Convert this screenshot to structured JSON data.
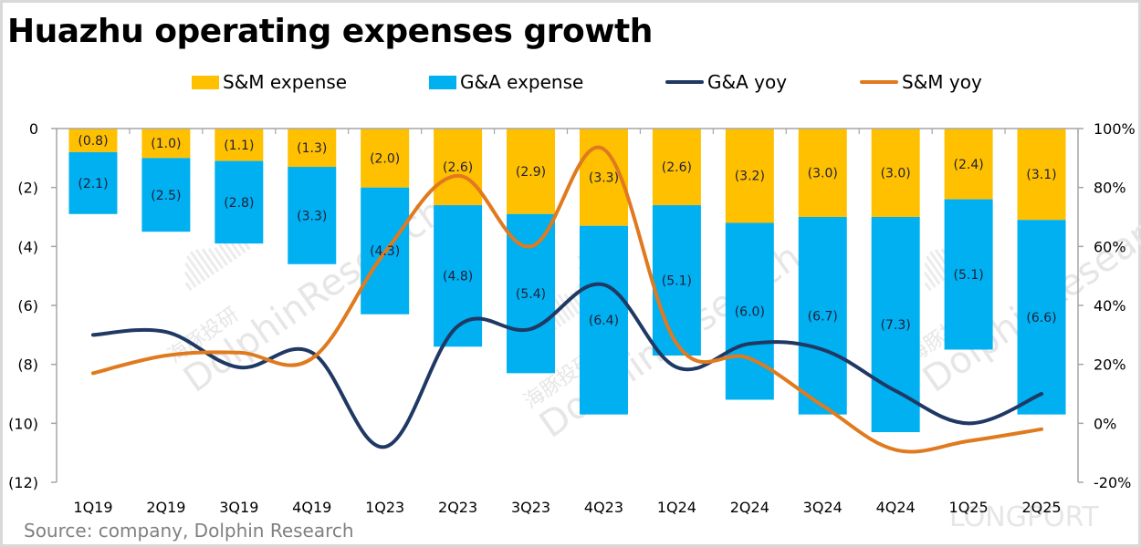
{
  "title": "Huazhu operating expenses growth",
  "source": "Source: company, Dolphin Research",
  "watermark": {
    "brand": "DolphinResearch",
    "brand_cn": "海豚投研",
    "corner": "LONGPORT"
  },
  "legend": [
    {
      "key": "sm_expense",
      "label": "S&M expense",
      "kind": "bar",
      "color": "#FFC000"
    },
    {
      "key": "ga_expense",
      "label": "G&A expense",
      "kind": "bar",
      "color": "#00B0F0"
    },
    {
      "key": "ga_yoy",
      "label": "G&A yoy",
      "kind": "line",
      "color": "#1F3864"
    },
    {
      "key": "sm_yoy",
      "label": "S&M yoy",
      "kind": "line",
      "color": "#E07A1F"
    }
  ],
  "chart_data": {
    "type": "bar",
    "subtype": "stacked bar + line (dual axis)",
    "title": "Huazhu operating expenses growth",
    "categories": [
      "1Q19",
      "2Q19",
      "3Q19",
      "4Q19",
      "1Q23",
      "2Q23",
      "3Q23",
      "4Q23",
      "1Q24",
      "2Q24",
      "3Q24",
      "4Q24",
      "1Q25",
      "2Q25"
    ],
    "series": [
      {
        "name": "S&M expense",
        "type": "bar",
        "axis": "left",
        "color": "#FFC000",
        "values": [
          -0.8,
          -1.0,
          -1.1,
          -1.3,
          -2.0,
          -2.6,
          -2.9,
          -3.3,
          -2.6,
          -3.2,
          -3.0,
          -3.0,
          -2.4,
          -3.1
        ],
        "labels": [
          "(0.8)",
          "(1.0)",
          "(1.1)",
          "(1.3)",
          "(2.0)",
          "(2.6)",
          "(2.9)",
          "(3.3)",
          "(2.6)",
          "(3.2)",
          "(3.0)",
          "(3.0)",
          "(2.4)",
          "(3.1)"
        ]
      },
      {
        "name": "G&A expense",
        "type": "bar",
        "axis": "left",
        "color": "#00B0F0",
        "values": [
          -2.1,
          -2.5,
          -2.8,
          -3.3,
          -4.3,
          -4.8,
          -5.4,
          -6.4,
          -5.1,
          -6.0,
          -6.7,
          -7.3,
          -5.1,
          -6.6
        ],
        "labels": [
          "(2.1)",
          "(2.5)",
          "(2.8)",
          "(3.3)",
          "(4.3)",
          "(4.8)",
          "(5.4)",
          "(6.4)",
          "(5.1)",
          "(6.0)",
          "(6.7)",
          "(7.3)",
          "(5.1)",
          "(6.6)"
        ]
      },
      {
        "name": "G&A yoy",
        "type": "line",
        "axis": "right",
        "color": "#1F3864",
        "values": [
          30,
          31,
          19,
          24,
          -8,
          33,
          32,
          47,
          19,
          27,
          25,
          11,
          0,
          10
        ]
      },
      {
        "name": "S&M yoy",
        "type": "line",
        "axis": "right",
        "color": "#E07A1F",
        "values": [
          17,
          23,
          24,
          22,
          58,
          84,
          60,
          93,
          27,
          22,
          6,
          -9,
          -6,
          -2
        ]
      }
    ],
    "left_axis": {
      "ylim": [
        -12,
        0
      ],
      "ticks": [
        0,
        -2,
        -4,
        -6,
        -8,
        -10,
        -12
      ],
      "tick_labels": [
        "0",
        "(2)",
        "(4)",
        "(6)",
        "(8)",
        "(10)",
        "(12)"
      ]
    },
    "right_axis": {
      "ylim": [
        -20,
        100
      ],
      "ticks": [
        100,
        80,
        60,
        40,
        20,
        0,
        -20
      ],
      "tick_labels": [
        "100%",
        "80%",
        "60%",
        "40%",
        "20%",
        "0%",
        "-20%"
      ]
    },
    "xlabel": "",
    "ylabel": "",
    "grid": false,
    "legend_position": "top"
  }
}
